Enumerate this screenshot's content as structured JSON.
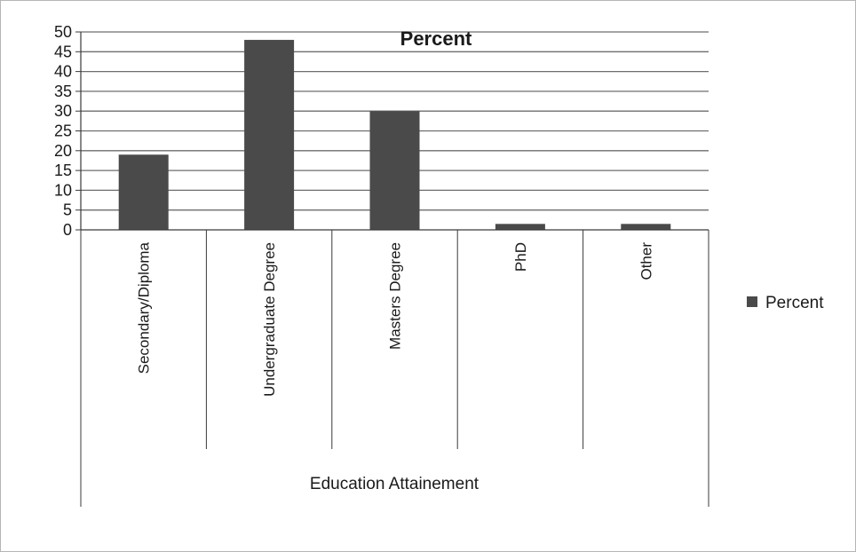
{
  "chart_data": {
    "type": "bar",
    "title": "Percent",
    "xlabel": "Education Attainement",
    "ylabel": "",
    "categories": [
      "Secondary/Diploma",
      "Undergraduate Degree",
      "Masters Degree",
      "PhD",
      "Other"
    ],
    "series": [
      {
        "name": "Percent",
        "values": [
          19,
          48,
          30,
          1.5,
          1.5
        ]
      }
    ],
    "ylim": [
      0,
      50
    ],
    "yticks": [
      0,
      5,
      10,
      15,
      20,
      25,
      30,
      35,
      40,
      45,
      50
    ],
    "grid": true,
    "legend_position": "right",
    "colors": {
      "bar": "#4a4a4a",
      "grid": "#6e6e6e",
      "axis": "#3a3a3a",
      "text": "#1a1a1a"
    }
  }
}
